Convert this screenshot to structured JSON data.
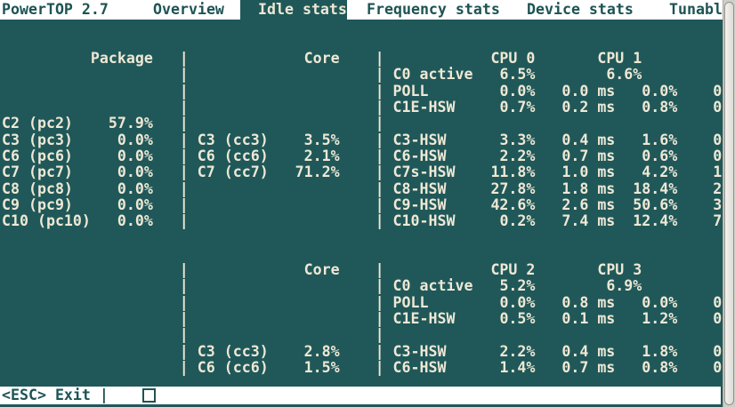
{
  "app": {
    "title": "PowerTOP 2.7"
  },
  "tabs": [
    {
      "label": "Overview",
      "selected": false
    },
    {
      "label": "Idle stats",
      "selected": true
    },
    {
      "label": "Frequency stats",
      "selected": false
    },
    {
      "label": "Device stats",
      "selected": false
    },
    {
      "label": "Tunabl",
      "selected": false
    }
  ],
  "colors": {
    "background": "#205859",
    "text": "#eee8d5",
    "bar_bg": "#ffffff",
    "bar_text": "#1d5353"
  },
  "footer": {
    "exit_hint": "<ESC> Exit |"
  },
  "idle_stats": {
    "grid": {
      "rows": [
        {
          "line": 3,
          "cells": [
            {
              "c": 10,
              "t": "Package",
              "n": "column-header-package"
            },
            {
              "c": 20,
              "t": "|",
              "n": "separator"
            },
            {
              "c": 34,
              "t": "Core",
              "n": "column-header-core"
            },
            {
              "c": 42,
              "t": "|",
              "n": "separator"
            },
            {
              "c": 55,
              "t": "CPU 0",
              "n": "column-header-cpu0"
            },
            {
              "c": 67,
              "t": "CPU 1",
              "n": "column-header-cpu1"
            }
          ]
        },
        {
          "line": 4,
          "cells": [
            {
              "c": 20,
              "t": "|",
              "n": "separator"
            },
            {
              "c": 42,
              "t": "|",
              "n": "separator"
            },
            {
              "c": 44,
              "t": "C0 active",
              "n": "cstate-label"
            },
            {
              "c": 56,
              "t": "6.5%",
              "n": "percent-value"
            },
            {
              "c": 68,
              "t": "6.6%",
              "n": "percent-value"
            }
          ]
        },
        {
          "line": 5,
          "cells": [
            {
              "c": 20,
              "t": "|",
              "n": "separator"
            },
            {
              "c": 42,
              "t": "|",
              "n": "separator"
            },
            {
              "c": 44,
              "t": "POLL",
              "n": "cstate-label"
            },
            {
              "c": 56,
              "t": "0.0%",
              "n": "percent-value"
            },
            {
              "c": 63,
              "t": "0.0 ms",
              "n": "ms-value"
            },
            {
              "c": 72,
              "t": "0.0%",
              "n": "percent-value"
            },
            {
              "c": 80,
              "t": "0",
              "n": "truncated-value"
            }
          ]
        },
        {
          "line": 6,
          "cells": [
            {
              "c": 20,
              "t": "|",
              "n": "separator"
            },
            {
              "c": 42,
              "t": "|",
              "n": "separator"
            },
            {
              "c": 44,
              "t": "C1E-HSW",
              "n": "cstate-label"
            },
            {
              "c": 56,
              "t": "0.7%",
              "n": "percent-value"
            },
            {
              "c": 63,
              "t": "0.2 ms",
              "n": "ms-value"
            },
            {
              "c": 72,
              "t": "0.8%",
              "n": "percent-value"
            },
            {
              "c": 80,
              "t": "0",
              "n": "truncated-value"
            }
          ]
        },
        {
          "line": 7,
          "cells": [
            {
              "c": 0,
              "t": "C2 (pc2)",
              "n": "cstate-label"
            },
            {
              "c": 12,
              "t": "57.9%",
              "n": "percent-value"
            },
            {
              "c": 20,
              "t": "|",
              "n": "separator"
            },
            {
              "c": 42,
              "t": "|",
              "n": "separator"
            }
          ]
        },
        {
          "line": 8,
          "cells": [
            {
              "c": 0,
              "t": "C3 (pc3)",
              "n": "cstate-label"
            },
            {
              "c": 13,
              "t": "0.0%",
              "n": "percent-value"
            },
            {
              "c": 20,
              "t": "|",
              "n": "separator"
            },
            {
              "c": 22,
              "t": "C3 (cc3)",
              "n": "cstate-label"
            },
            {
              "c": 34,
              "t": "3.5%",
              "n": "percent-value"
            },
            {
              "c": 42,
              "t": "|",
              "n": "separator"
            },
            {
              "c": 44,
              "t": "C3-HSW",
              "n": "cstate-label"
            },
            {
              "c": 56,
              "t": "3.3%",
              "n": "percent-value"
            },
            {
              "c": 63,
              "t": "0.4 ms",
              "n": "ms-value"
            },
            {
              "c": 72,
              "t": "1.6%",
              "n": "percent-value"
            },
            {
              "c": 80,
              "t": "0",
              "n": "truncated-value"
            }
          ]
        },
        {
          "line": 9,
          "cells": [
            {
              "c": 0,
              "t": "C6 (pc6)",
              "n": "cstate-label"
            },
            {
              "c": 13,
              "t": "0.0%",
              "n": "percent-value"
            },
            {
              "c": 20,
              "t": "|",
              "n": "separator"
            },
            {
              "c": 22,
              "t": "C6 (cc6)",
              "n": "cstate-label"
            },
            {
              "c": 34,
              "t": "2.1%",
              "n": "percent-value"
            },
            {
              "c": 42,
              "t": "|",
              "n": "separator"
            },
            {
              "c": 44,
              "t": "C6-HSW",
              "n": "cstate-label"
            },
            {
              "c": 56,
              "t": "2.2%",
              "n": "percent-value"
            },
            {
              "c": 63,
              "t": "0.7 ms",
              "n": "ms-value"
            },
            {
              "c": 72,
              "t": "0.6%",
              "n": "percent-value"
            },
            {
              "c": 80,
              "t": "0",
              "n": "truncated-value"
            }
          ]
        },
        {
          "line": 10,
          "cells": [
            {
              "c": 0,
              "t": "C7 (pc7)",
              "n": "cstate-label"
            },
            {
              "c": 13,
              "t": "0.0%",
              "n": "percent-value"
            },
            {
              "c": 20,
              "t": "|",
              "n": "separator"
            },
            {
              "c": 22,
              "t": "C7 (cc7)",
              "n": "cstate-label"
            },
            {
              "c": 33,
              "t": "71.2%",
              "n": "percent-value"
            },
            {
              "c": 42,
              "t": "|",
              "n": "separator"
            },
            {
              "c": 44,
              "t": "C7s-HSW",
              "n": "cstate-label"
            },
            {
              "c": 55,
              "t": "11.8%",
              "n": "percent-value"
            },
            {
              "c": 63,
              "t": "1.0 ms",
              "n": "ms-value"
            },
            {
              "c": 72,
              "t": "4.2%",
              "n": "percent-value"
            },
            {
              "c": 80,
              "t": "1",
              "n": "truncated-value"
            }
          ]
        },
        {
          "line": 11,
          "cells": [
            {
              "c": 0,
              "t": "C8 (pc8)",
              "n": "cstate-label"
            },
            {
              "c": 13,
              "t": "0.0%",
              "n": "percent-value"
            },
            {
              "c": 20,
              "t": "|",
              "n": "separator"
            },
            {
              "c": 42,
              "t": "|",
              "n": "separator"
            },
            {
              "c": 44,
              "t": "C8-HSW",
              "n": "cstate-label"
            },
            {
              "c": 55,
              "t": "27.8%",
              "n": "percent-value"
            },
            {
              "c": 63,
              "t": "1.8 ms",
              "n": "ms-value"
            },
            {
              "c": 71,
              "t": "18.4%",
              "n": "percent-value"
            },
            {
              "c": 80,
              "t": "2",
              "n": "truncated-value"
            }
          ]
        },
        {
          "line": 12,
          "cells": [
            {
              "c": 0,
              "t": "C9 (pc9)",
              "n": "cstate-label"
            },
            {
              "c": 13,
              "t": "0.0%",
              "n": "percent-value"
            },
            {
              "c": 20,
              "t": "|",
              "n": "separator"
            },
            {
              "c": 42,
              "t": "|",
              "n": "separator"
            },
            {
              "c": 44,
              "t": "C9-HSW",
              "n": "cstate-label"
            },
            {
              "c": 55,
              "t": "42.6%",
              "n": "percent-value"
            },
            {
              "c": 63,
              "t": "2.6 ms",
              "n": "ms-value"
            },
            {
              "c": 71,
              "t": "50.6%",
              "n": "percent-value"
            },
            {
              "c": 80,
              "t": "3",
              "n": "truncated-value"
            }
          ]
        },
        {
          "line": 13,
          "cells": [
            {
              "c": 0,
              "t": "C10 (pc10)",
              "n": "cstate-label"
            },
            {
              "c": 13,
              "t": "0.0%",
              "n": "percent-value"
            },
            {
              "c": 20,
              "t": "|",
              "n": "separator"
            },
            {
              "c": 42,
              "t": "|",
              "n": "separator"
            },
            {
              "c": 44,
              "t": "C10-HSW",
              "n": "cstate-label"
            },
            {
              "c": 56,
              "t": "0.2%",
              "n": "percent-value"
            },
            {
              "c": 63,
              "t": "7.4 ms",
              "n": "ms-value"
            },
            {
              "c": 71,
              "t": "12.4%",
              "n": "percent-value"
            },
            {
              "c": 80,
              "t": "7",
              "n": "truncated-value"
            }
          ]
        },
        {
          "line": 16,
          "cells": [
            {
              "c": 20,
              "t": "|",
              "n": "separator"
            },
            {
              "c": 34,
              "t": "Core",
              "n": "column-header-core"
            },
            {
              "c": 42,
              "t": "|",
              "n": "separator"
            },
            {
              "c": 55,
              "t": "CPU 2",
              "n": "column-header-cpu2"
            },
            {
              "c": 67,
              "t": "CPU 3",
              "n": "column-header-cpu3"
            }
          ]
        },
        {
          "line": 17,
          "cells": [
            {
              "c": 20,
              "t": "|",
              "n": "separator"
            },
            {
              "c": 42,
              "t": "|",
              "n": "separator"
            },
            {
              "c": 44,
              "t": "C0 active",
              "n": "cstate-label"
            },
            {
              "c": 56,
              "t": "5.2%",
              "n": "percent-value"
            },
            {
              "c": 68,
              "t": "6.9%",
              "n": "percent-value"
            }
          ]
        },
        {
          "line": 18,
          "cells": [
            {
              "c": 20,
              "t": "|",
              "n": "separator"
            },
            {
              "c": 42,
              "t": "|",
              "n": "separator"
            },
            {
              "c": 44,
              "t": "POLL",
              "n": "cstate-label"
            },
            {
              "c": 56,
              "t": "0.0%",
              "n": "percent-value"
            },
            {
              "c": 63,
              "t": "0.8 ms",
              "n": "ms-value"
            },
            {
              "c": 72,
              "t": "0.0%",
              "n": "percent-value"
            },
            {
              "c": 80,
              "t": "0",
              "n": "truncated-value"
            }
          ]
        },
        {
          "line": 19,
          "cells": [
            {
              "c": 20,
              "t": "|",
              "n": "separator"
            },
            {
              "c": 42,
              "t": "|",
              "n": "separator"
            },
            {
              "c": 44,
              "t": "C1E-HSW",
              "n": "cstate-label"
            },
            {
              "c": 56,
              "t": "0.5%",
              "n": "percent-value"
            },
            {
              "c": 63,
              "t": "0.1 ms",
              "n": "ms-value"
            },
            {
              "c": 72,
              "t": "1.2%",
              "n": "percent-value"
            },
            {
              "c": 80,
              "t": "0",
              "n": "truncated-value"
            }
          ]
        },
        {
          "line": 20,
          "cells": [
            {
              "c": 20,
              "t": "|",
              "n": "separator"
            },
            {
              "c": 42,
              "t": "|",
              "n": "separator"
            }
          ]
        },
        {
          "line": 21,
          "cells": [
            {
              "c": 20,
              "t": "|",
              "n": "separator"
            },
            {
              "c": 22,
              "t": "C3 (cc3)",
              "n": "cstate-label"
            },
            {
              "c": 34,
              "t": "2.8%",
              "n": "percent-value"
            },
            {
              "c": 42,
              "t": "|",
              "n": "separator"
            },
            {
              "c": 44,
              "t": "C3-HSW",
              "n": "cstate-label"
            },
            {
              "c": 56,
              "t": "2.2%",
              "n": "percent-value"
            },
            {
              "c": 63,
              "t": "0.4 ms",
              "n": "ms-value"
            },
            {
              "c": 72,
              "t": "1.8%",
              "n": "percent-value"
            },
            {
              "c": 80,
              "t": "0",
              "n": "truncated-value"
            }
          ]
        },
        {
          "line": 22,
          "cells": [
            {
              "c": 20,
              "t": "|",
              "n": "separator"
            },
            {
              "c": 22,
              "t": "C6 (cc6)",
              "n": "cstate-label"
            },
            {
              "c": 34,
              "t": "1.5%",
              "n": "percent-value"
            },
            {
              "c": 42,
              "t": "|",
              "n": "separator"
            },
            {
              "c": 44,
              "t": "C6-HSW",
              "n": "cstate-label"
            },
            {
              "c": 56,
              "t": "1.4%",
              "n": "percent-value"
            },
            {
              "c": 63,
              "t": "0.7 ms",
              "n": "ms-value"
            },
            {
              "c": 72,
              "t": "0.8%",
              "n": "percent-value"
            },
            {
              "c": 80,
              "t": "0",
              "n": "truncated-value"
            }
          ]
        }
      ]
    }
  }
}
